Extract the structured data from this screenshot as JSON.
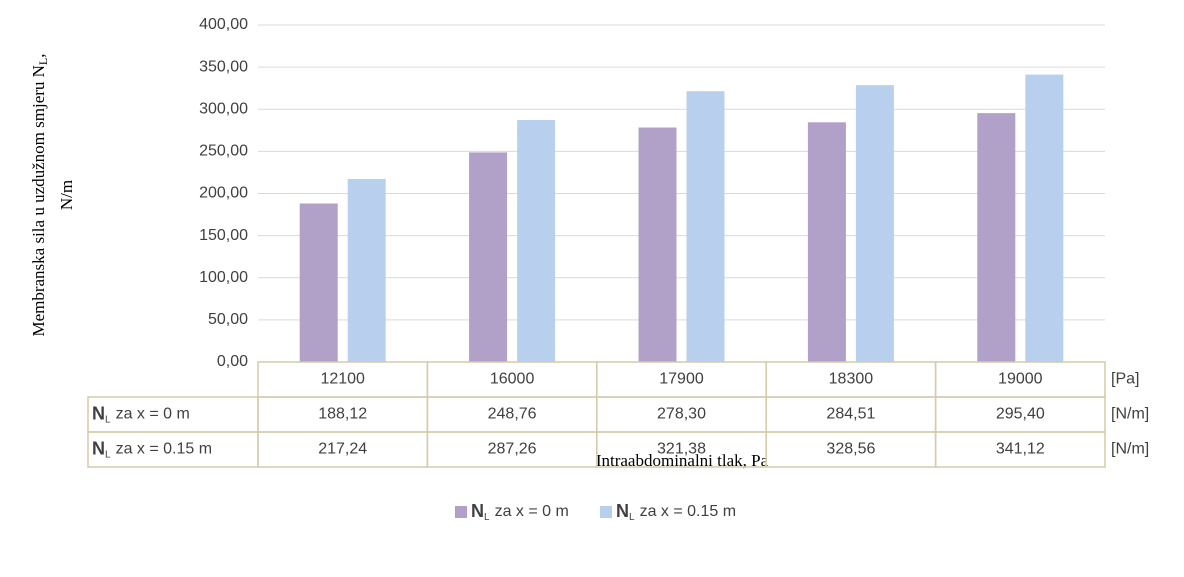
{
  "chart_data": {
    "type": "bar",
    "ylabel": {
      "text": "Membranska sila u uzdužnom smjeru N",
      "subscript": "L",
      "suffix": ",",
      "line2": "N/m"
    },
    "xlabel": "Intraabdominalni tlak, Pa",
    "categories": [
      "12100",
      "16000",
      "17900",
      "18300",
      "19000"
    ],
    "category_unit": "[Pa]",
    "series": [
      {
        "symbol": "N",
        "subscript": "L",
        "name": "za x = 0 m",
        "unit": "[N/m]",
        "color": "#b1a0c7",
        "values": [
          188.12,
          248.76,
          278.3,
          284.51,
          295.4
        ],
        "value_labels": [
          "188,12",
          "248,76",
          "278,30",
          "284,51",
          "295,40"
        ]
      },
      {
        "symbol": "N",
        "subscript": "L",
        "name": "za x = 0.15 m",
        "unit": "[N/m]",
        "color": "#b8cfee",
        "values": [
          217.24,
          287.26,
          321.38,
          328.56,
          341.12
        ],
        "value_labels": [
          "217,24",
          "287,26",
          "321,38",
          "328,56",
          "341,12"
        ]
      }
    ],
    "ylim": [
      0,
      400
    ],
    "yticks": [
      {
        "value": 0,
        "label": "0,00"
      },
      {
        "value": 50,
        "label": "50,00"
      },
      {
        "value": 100,
        "label": "100,00"
      },
      {
        "value": 150,
        "label": "150,00"
      },
      {
        "value": 200,
        "label": "200,00"
      },
      {
        "value": 250,
        "label": "250,00"
      },
      {
        "value": 300,
        "label": "300,00"
      },
      {
        "value": 350,
        "label": "350,00"
      },
      {
        "value": 400,
        "label": "400,00"
      }
    ],
    "grid": true,
    "legend": "bottom"
  }
}
